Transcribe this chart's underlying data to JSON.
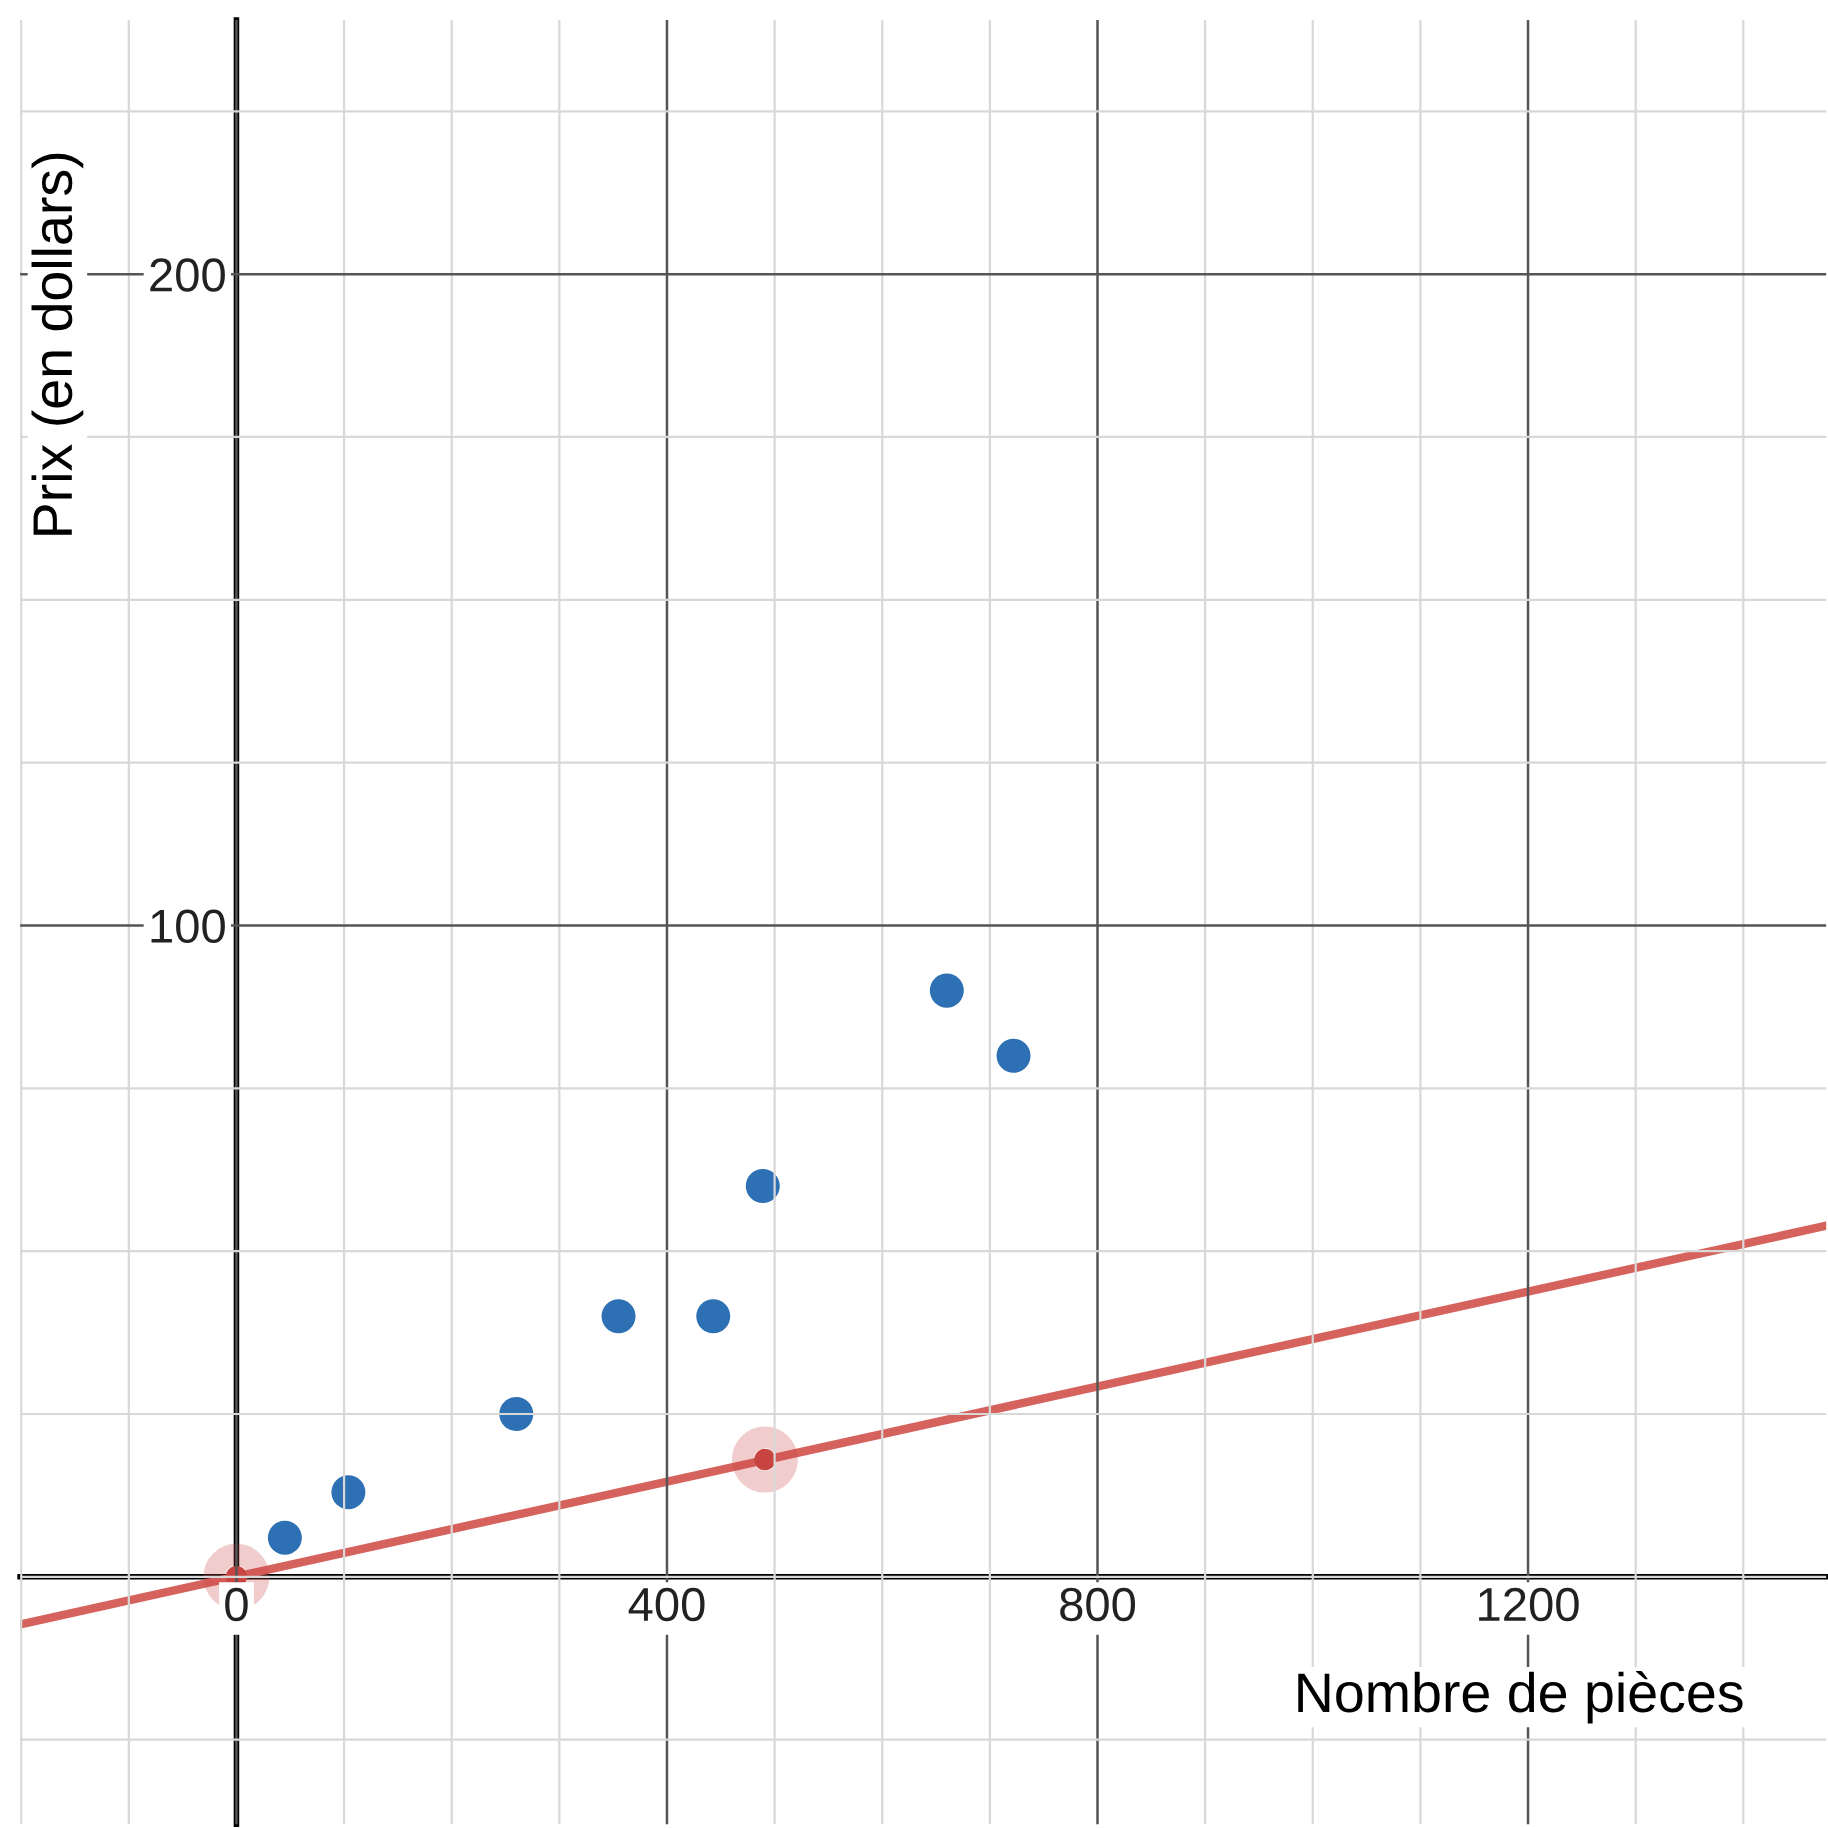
{
  "chart_data": {
    "type": "scatter",
    "xlabel": "Nombre de pièces",
    "ylabel": "Prix (en dollars)",
    "xlim": [
      -201,
      1477
    ],
    "ylim": [
      -38,
      239
    ],
    "xticks": [
      0,
      400,
      800,
      1200
    ],
    "yticks": [
      100,
      200
    ],
    "grid": true,
    "marker": "circle",
    "series": [
      {
        "color": "#2d70b3",
        "x": [
          45,
          104,
          260,
          355,
          443,
          489,
          660,
          722
        ],
        "values": [
          6,
          13,
          25,
          40,
          40,
          60,
          90,
          80
        ]
      },
      {
        "type": "line",
        "marker": "none",
        "color": "#d6625d",
        "x": [
          -201,
          1477
        ],
        "values": [
          -7.3,
          53.9
        ]
      },
      {
        "color": "#c74440",
        "x": [
          0,
          491
        ],
        "values": [
          0,
          18
        ]
      }
    ]
  }
}
